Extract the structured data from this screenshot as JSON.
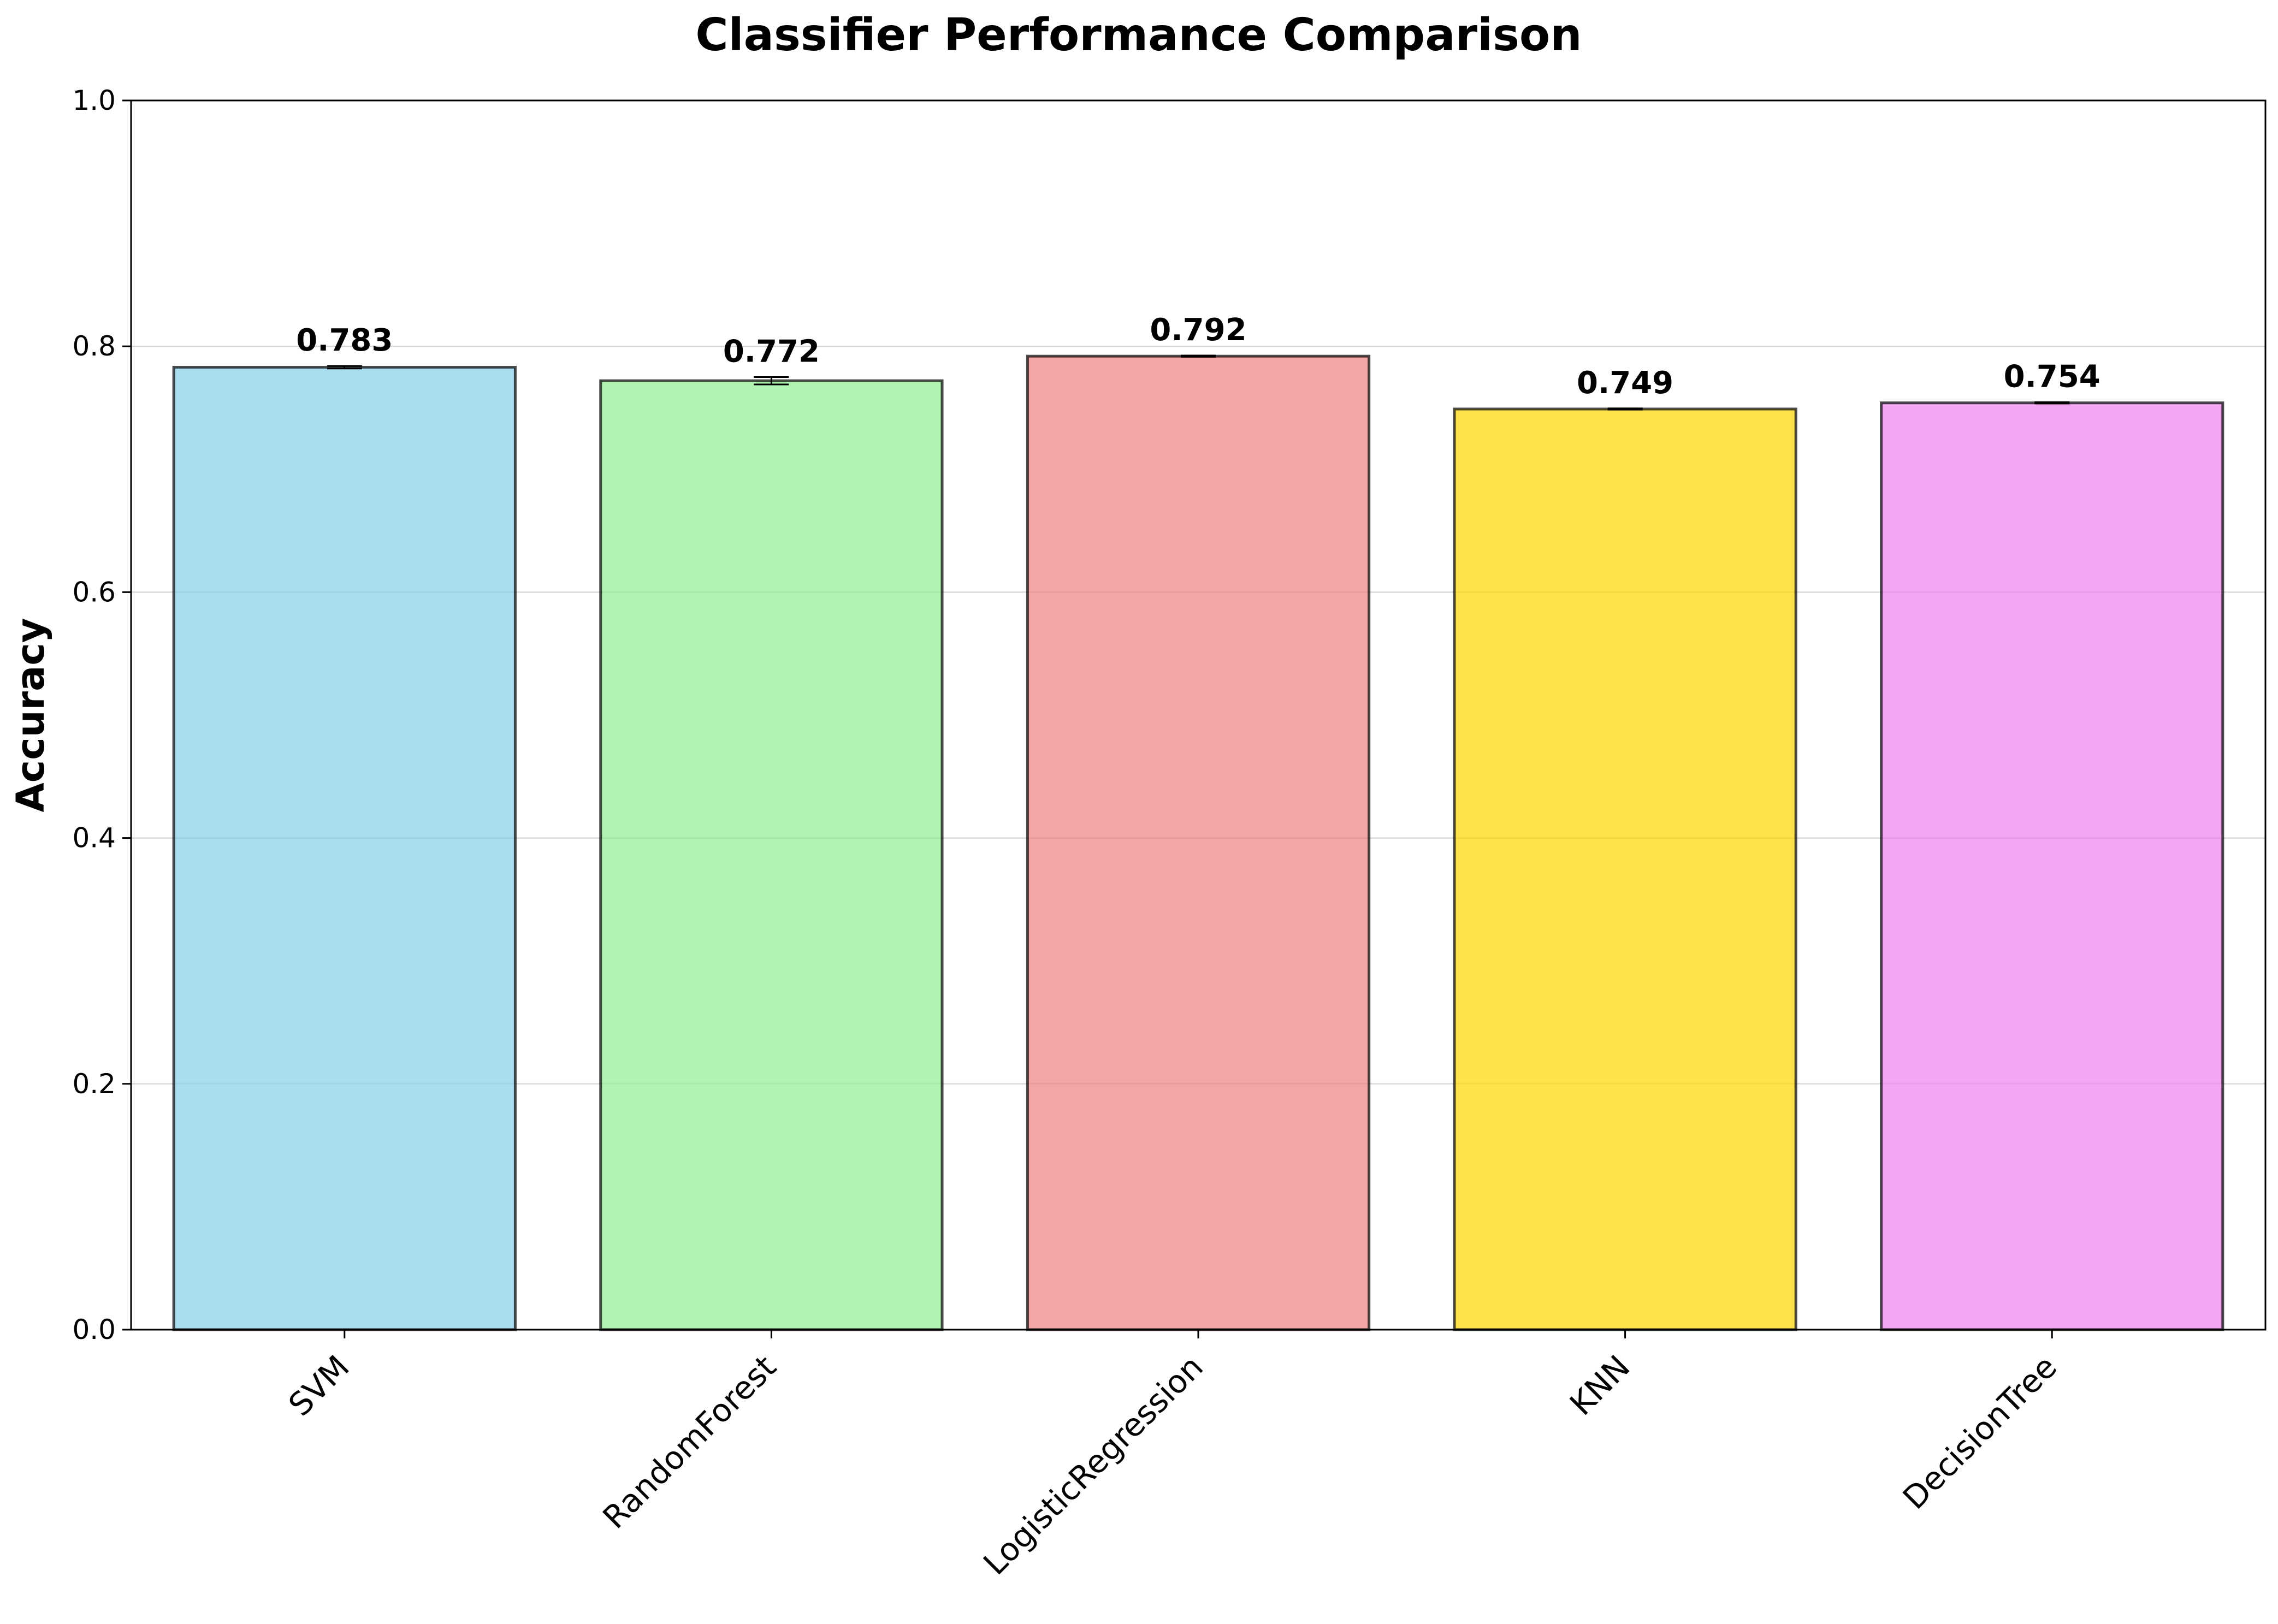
{
  "chart_data": {
    "type": "bar",
    "title": "Classifier Performance Comparison",
    "xlabel": "",
    "ylabel": "Accuracy",
    "categories": [
      "SVM",
      "RandomForest",
      "LogisticRegression",
      "KNN",
      "DecisionTree"
    ],
    "values": [
      0.783,
      0.772,
      0.792,
      0.749,
      0.754
    ],
    "value_labels": [
      "0.783",
      "0.772",
      "0.792",
      "0.749",
      "0.754"
    ],
    "errors": [
      0.001,
      0.003,
      0.0005,
      0.0005,
      0.0005
    ],
    "colors": [
      "#87CEEB",
      "#90EE90",
      "#F08080",
      "#FFD700",
      "#EE82EE"
    ],
    "bar_alpha": 0.7,
    "edge_color": "#000000",
    "ylim": [
      0,
      1.0
    ],
    "yticks": [
      "0.0",
      "0.2",
      "0.4",
      "0.6",
      "0.8",
      "1.0"
    ],
    "grid": "y",
    "legend": "none"
  }
}
